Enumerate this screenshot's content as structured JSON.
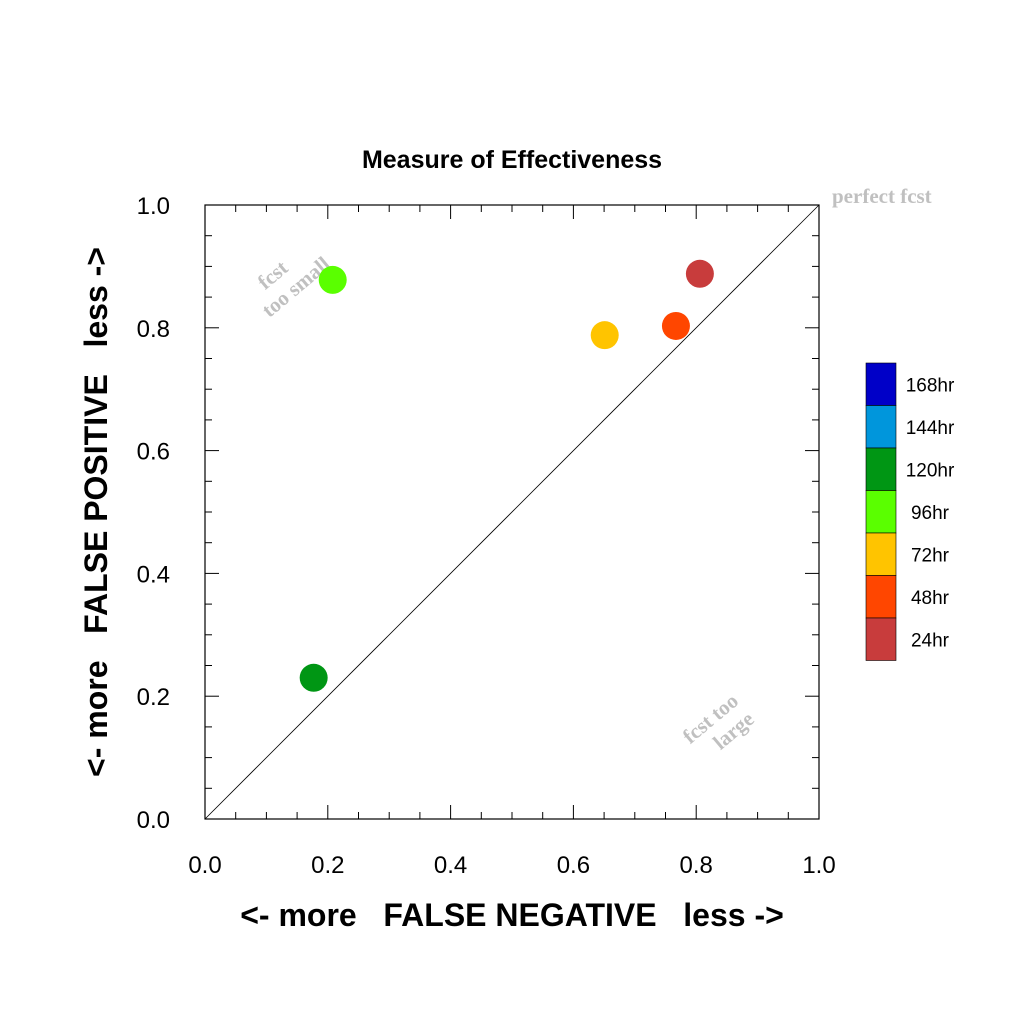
{
  "chart_data": {
    "type": "scatter",
    "title": "Measure of Effectiveness",
    "xlabel": "<- more   FALSE NEGATIVE   less ->",
    "ylabel": "<- more   FALSE POSITIVE   less ->",
    "xlim": [
      0.0,
      1.0
    ],
    "ylim": [
      0.0,
      1.0
    ],
    "xticks": [
      "0.0",
      "0.2",
      "0.4",
      "0.6",
      "0.8",
      "1.0"
    ],
    "yticks": [
      "0.0",
      "0.2",
      "0.4",
      "0.6",
      "0.8",
      "1.0"
    ],
    "grid": false,
    "legend_position": "right",
    "reference_line": "diagonal y = x",
    "annotations": {
      "perfect": "perfect fcst",
      "too_small": [
        "fcst",
        "too small"
      ],
      "too_large": [
        "fcst too",
        "large"
      ]
    },
    "legend": [
      {
        "name": "168hr",
        "color": "#0000c8"
      },
      {
        "name": "144hr",
        "color": "#0096dc"
      },
      {
        "name": "120hr",
        "color": "#009614"
      },
      {
        "name": "96hr",
        "color": "#5aff00"
      },
      {
        "name": "72hr",
        "color": "#ffc400"
      },
      {
        "name": "48hr",
        "color": "#ff4600"
      },
      {
        "name": "24hr",
        "color": "#c83c3c"
      }
    ],
    "series": [
      {
        "name": "120hr",
        "color": "#009614",
        "x": 0.177,
        "y": 0.23
      },
      {
        "name": "96hr",
        "color": "#5aff00",
        "x": 0.208,
        "y": 0.878
      },
      {
        "name": "72hr",
        "color": "#ffc400",
        "x": 0.651,
        "y": 0.788
      },
      {
        "name": "48hr",
        "color": "#ff4600",
        "x": 0.767,
        "y": 0.803
      },
      {
        "name": "24hr",
        "color": "#c83c3c",
        "x": 0.806,
        "y": 0.888
      }
    ]
  }
}
